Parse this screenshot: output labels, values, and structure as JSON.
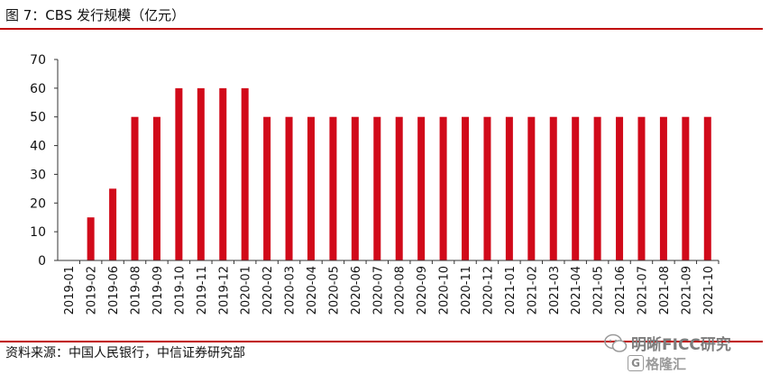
{
  "figure": {
    "title": "图 7：CBS 发行规模（亿元）",
    "source": "资料来源：中国人民银行，中信证券研究部",
    "watermark_line1": "明晰FICC研究",
    "watermark_logo": "G",
    "watermark_line2": "格隆汇"
  },
  "colors": {
    "bar": "#d10a1a",
    "rule": "#c00000",
    "axis": "#333333"
  },
  "chart_data": {
    "type": "bar",
    "title": "",
    "xlabel": "",
    "ylabel": "",
    "ylim": [
      0,
      70
    ],
    "yticks": [
      0,
      10,
      20,
      30,
      40,
      50,
      60,
      70
    ],
    "grid": false,
    "legend": "none",
    "categories": [
      "2019-01",
      "2019-02",
      "2019-06",
      "2019-08",
      "2019-09",
      "2019-10",
      "2019-11",
      "2019-12",
      "2020-01",
      "2020-02",
      "2020-03",
      "2020-04",
      "2020-05",
      "2020-06",
      "2020-07",
      "2020-08",
      "2020-09",
      "2020-10",
      "2020-11",
      "2020-12",
      "2021-01",
      "2021-02",
      "2021-03",
      "2021-04",
      "2021-05",
      "2021-06",
      "2021-07",
      "2021-08",
      "2021-09",
      "2021-10"
    ],
    "values": [
      0,
      15,
      25,
      50,
      50,
      60,
      60,
      60,
      60,
      50,
      50,
      50,
      50,
      50,
      50,
      50,
      50,
      50,
      50,
      50,
      50,
      50,
      50,
      50,
      50,
      50,
      50,
      50,
      50,
      50
    ]
  }
}
